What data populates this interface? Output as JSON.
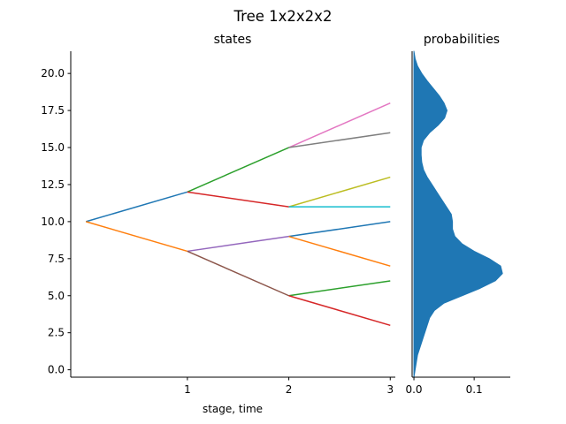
{
  "figure": {
    "title": "Tree 1x2x2x2"
  },
  "chart_data": [
    {
      "type": "line",
      "title": "states",
      "xlabel": "stage, time",
      "ylabel": "",
      "xlim": [
        -0.15,
        3.05
      ],
      "ylim": [
        -0.5,
        21.5
      ],
      "xticks": [
        1,
        2,
        3
      ],
      "xtick_labels": [
        "1",
        "2",
        "3"
      ],
      "yticks": [
        0,
        2.5,
        5,
        7.5,
        10,
        12.5,
        15,
        17.5,
        20
      ],
      "ytick_labels": [
        "0.0",
        "2.5",
        "5.0",
        "7.5",
        "10.0",
        "12.5",
        "15.0",
        "17.5",
        "20.0"
      ],
      "grid": false,
      "legend": "none",
      "series": [
        {
          "x": [
            0,
            1
          ],
          "y": [
            10,
            12
          ],
          "color": "#1f77b4"
        },
        {
          "x": [
            0,
            1
          ],
          "y": [
            10,
            8
          ],
          "color": "#ff7f0e"
        },
        {
          "x": [
            1,
            2
          ],
          "y": [
            12,
            15
          ],
          "color": "#2ca02c"
        },
        {
          "x": [
            1,
            2
          ],
          "y": [
            12,
            11
          ],
          "color": "#d62728"
        },
        {
          "x": [
            1,
            2
          ],
          "y": [
            8,
            9
          ],
          "color": "#9467bd"
        },
        {
          "x": [
            1,
            2
          ],
          "y": [
            8,
            5
          ],
          "color": "#8c564b"
        },
        {
          "x": [
            2,
            3
          ],
          "y": [
            15,
            18
          ],
          "color": "#e377c2"
        },
        {
          "x": [
            2,
            3
          ],
          "y": [
            15,
            16
          ],
          "color": "#7f7f7f"
        },
        {
          "x": [
            2,
            3
          ],
          "y": [
            11,
            13
          ],
          "color": "#bcbd22"
        },
        {
          "x": [
            2,
            3
          ],
          "y": [
            11,
            11
          ],
          "color": "#17becf"
        },
        {
          "x": [
            2,
            3
          ],
          "y": [
            9,
            10
          ],
          "color": "#1f77b4"
        },
        {
          "x": [
            2,
            3
          ],
          "y": [
            9,
            7
          ],
          "color": "#ff7f0e"
        },
        {
          "x": [
            2,
            3
          ],
          "y": [
            5,
            6
          ],
          "color": "#2ca02c"
        },
        {
          "x": [
            2,
            3
          ],
          "y": [
            5,
            3
          ],
          "color": "#d62728"
        }
      ]
    },
    {
      "type": "area",
      "title": "probabilities",
      "orientation": "horizontal",
      "fill_color": "#1f77b4",
      "xlim": [
        -0.003,
        0.16
      ],
      "ylim": [
        -0.5,
        21.5
      ],
      "xticks": [
        0.0,
        0.1
      ],
      "xtick_labels": [
        "0.0",
        "0.1"
      ],
      "grid": false,
      "legend": "none",
      "density": [
        [
          -0.5,
          0.0
        ],
        [
          0.0,
          0.002
        ],
        [
          0.5,
          0.004
        ],
        [
          1.0,
          0.006
        ],
        [
          1.5,
          0.01
        ],
        [
          2.0,
          0.014
        ],
        [
          2.5,
          0.018
        ],
        [
          3.0,
          0.022
        ],
        [
          3.5,
          0.026
        ],
        [
          4.0,
          0.034
        ],
        [
          4.5,
          0.05
        ],
        [
          5.0,
          0.08
        ],
        [
          5.5,
          0.11
        ],
        [
          6.0,
          0.135
        ],
        [
          6.5,
          0.147
        ],
        [
          7.0,
          0.144
        ],
        [
          7.5,
          0.125
        ],
        [
          8.0,
          0.1
        ],
        [
          8.5,
          0.08
        ],
        [
          9.0,
          0.068
        ],
        [
          9.5,
          0.064
        ],
        [
          10.0,
          0.064
        ],
        [
          10.5,
          0.062
        ],
        [
          11.0,
          0.054
        ],
        [
          11.5,
          0.046
        ],
        [
          12.0,
          0.038
        ],
        [
          12.5,
          0.03
        ],
        [
          13.0,
          0.022
        ],
        [
          13.5,
          0.016
        ],
        [
          14.0,
          0.013
        ],
        [
          14.5,
          0.012
        ],
        [
          15.0,
          0.012
        ],
        [
          15.5,
          0.016
        ],
        [
          16.0,
          0.026
        ],
        [
          16.5,
          0.04
        ],
        [
          17.0,
          0.051
        ],
        [
          17.5,
          0.055
        ],
        [
          18.0,
          0.05
        ],
        [
          18.5,
          0.042
        ],
        [
          19.0,
          0.032
        ],
        [
          19.5,
          0.022
        ],
        [
          20.0,
          0.013
        ],
        [
          20.5,
          0.006
        ],
        [
          21.0,
          0.002
        ],
        [
          21.5,
          0.0
        ]
      ]
    }
  ]
}
